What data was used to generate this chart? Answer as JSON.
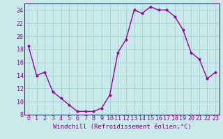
{
  "x": [
    0,
    1,
    2,
    3,
    4,
    5,
    6,
    7,
    8,
    9,
    10,
    11,
    12,
    13,
    14,
    15,
    16,
    17,
    18,
    19,
    20,
    21,
    22,
    23
  ],
  "y": [
    18.5,
    14.0,
    14.5,
    11.5,
    10.5,
    9.5,
    8.5,
    8.5,
    8.5,
    9.0,
    11.0,
    17.5,
    19.5,
    24.0,
    23.5,
    24.5,
    24.0,
    24.0,
    23.0,
    21.0,
    17.5,
    16.5,
    13.5,
    14.5
  ],
  "line_color": "#990099",
  "marker_color": "#990099",
  "bg_color": "#c8eaea",
  "grid_color": "#99cccc",
  "xlabel": "Windchill (Refroidissement éolien,°C)",
  "xlim": [
    -0.5,
    23.5
  ],
  "ylim": [
    8,
    25
  ],
  "yticks": [
    8,
    10,
    12,
    14,
    16,
    18,
    20,
    22,
    24
  ],
  "xticks": [
    0,
    1,
    2,
    3,
    4,
    5,
    6,
    7,
    8,
    9,
    10,
    11,
    12,
    13,
    14,
    15,
    16,
    17,
    18,
    19,
    20,
    21,
    22,
    23
  ],
  "tick_label_color": "#880088",
  "axis_color": "#880088",
  "xlabel_color": "#880088",
  "xlabel_fontsize": 6.5,
  "tick_fontsize": 6.0,
  "line_width": 1.0,
  "marker_size": 2.5
}
